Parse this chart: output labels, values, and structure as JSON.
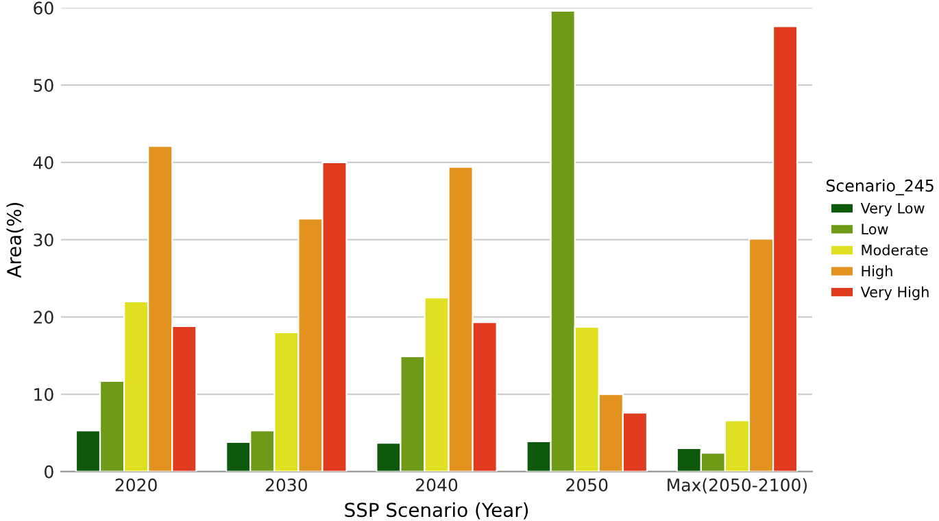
{
  "chart_data": {
    "type": "bar",
    "xlabel": "SSP Scenario (Year)",
    "ylabel": "Area(%)",
    "legend_title": "Scenario_245",
    "legend": "right",
    "grid": "y",
    "categories": [
      "2020",
      "2030",
      "2040",
      "2050",
      "Max(2050-2100)"
    ],
    "ylim": [
      0,
      60
    ],
    "yticks": [
      0,
      10,
      20,
      30,
      40,
      50,
      60
    ],
    "series": [
      {
        "name": "Very Low",
        "color": "#0d5a0d",
        "values": [
          5.3,
          3.8,
          3.7,
          3.9,
          3.0
        ]
      },
      {
        "name": "Low",
        "color": "#6e9a18",
        "values": [
          11.7,
          5.3,
          14.9,
          59.6,
          2.4
        ]
      },
      {
        "name": "Moderate",
        "color": "#e0e022",
        "values": [
          22.0,
          18.0,
          22.5,
          18.7,
          6.6
        ]
      },
      {
        "name": "High",
        "color": "#e1921f",
        "values": [
          42.1,
          32.7,
          39.4,
          10.0,
          30.1
        ]
      },
      {
        "name": "Very High",
        "color": "#e03b1f",
        "values": [
          18.8,
          40.0,
          19.3,
          7.6,
          57.6
        ]
      }
    ]
  }
}
